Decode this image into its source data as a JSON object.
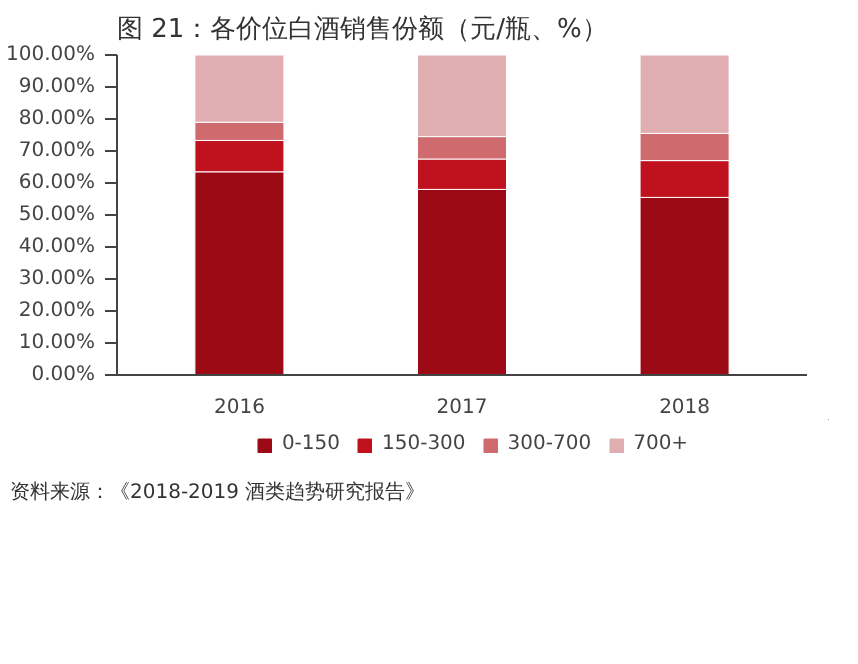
{
  "chart_data": {
    "type": "bar",
    "stacked": true,
    "title": "图 21：各价位白酒销售份额（元/瓶、%）",
    "categories": [
      "2016",
      "2017",
      "2018"
    ],
    "series": [
      {
        "name": "0-150",
        "color": "#9b0a15",
        "values": [
          63.5,
          58,
          55.5
        ]
      },
      {
        "name": "150-300",
        "color": "#c0111f",
        "values": [
          9.8,
          9.5,
          11.5
        ]
      },
      {
        "name": "300-700",
        "color": "#cf6b6e",
        "values": [
          5.7,
          7,
          8.5
        ]
      },
      {
        "name": "700+",
        "color": "#e0adb0",
        "values": [
          21,
          25.5,
          24.5
        ]
      }
    ],
    "ylim": [
      0,
      100
    ],
    "yticks": [
      {
        "value": 0,
        "label": "0.00%"
      },
      {
        "value": 10,
        "label": "10.00%"
      },
      {
        "value": 20,
        "label": "20.00%"
      },
      {
        "value": 30,
        "label": "30.00%"
      },
      {
        "value": 40,
        "label": "40.00%"
      },
      {
        "value": 50,
        "label": "50.00%"
      },
      {
        "value": 60,
        "label": "60.00%"
      },
      {
        "value": 70,
        "label": "70.00%"
      },
      {
        "value": 80,
        "label": "80.00%"
      },
      {
        "value": 90,
        "label": "90.00%"
      },
      {
        "value": 100,
        "label": "100.00%"
      }
    ],
    "grid": false,
    "legend": "bottom",
    "annotations": [
      "资料来源：《2018-2019 酒类趋势研究报告》"
    ]
  }
}
